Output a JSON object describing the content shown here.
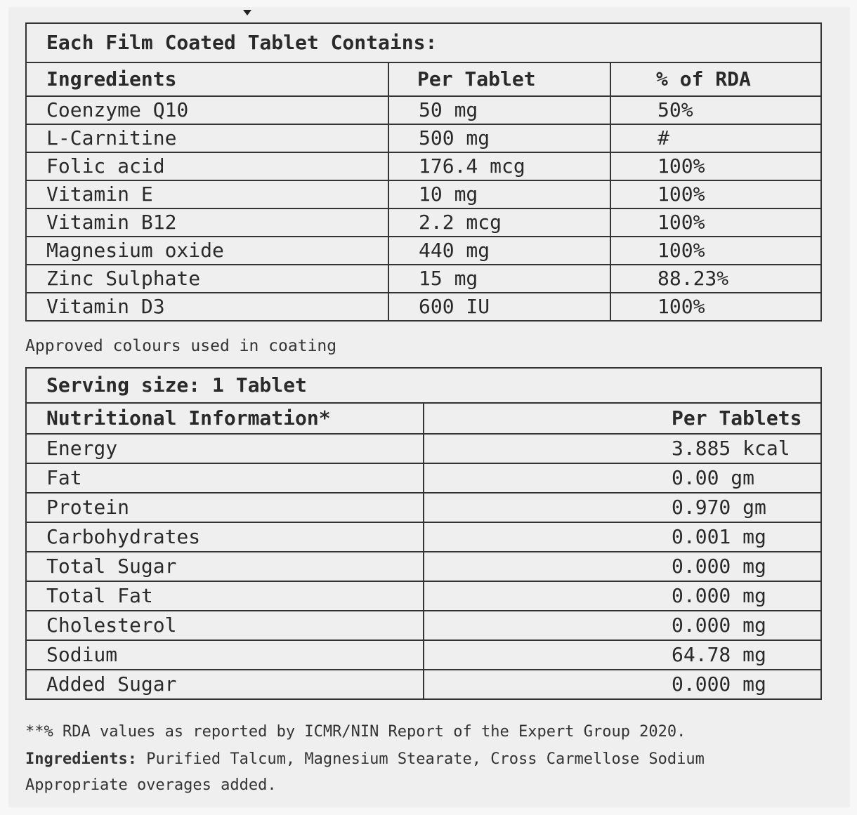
{
  "composition": {
    "title": "Each Film Coated Tablet Contains:",
    "headers": [
      "Ingredients",
      "Per Tablet",
      "% of RDA"
    ],
    "rows": [
      [
        "Coenzyme Q10",
        "50 mg",
        "50%"
      ],
      [
        "L-Carnitine",
        "500 mg",
        "#"
      ],
      [
        "Folic acid",
        "176.4 mcg",
        "100%"
      ],
      [
        "Vitamin E",
        "10 mg",
        "100%"
      ],
      [
        "Vitamin B12",
        "2.2 mcg",
        "100%"
      ],
      [
        "Magnesium oxide",
        "440 mg",
        "100%"
      ],
      [
        "Zinc Sulphate",
        "15 mg",
        "88.23%"
      ],
      [
        "Vitamin D3",
        "600 IU",
        "100%"
      ]
    ],
    "footnote": "Approved colours used in coating"
  },
  "nutrition": {
    "title": "Serving size: 1 Tablet",
    "headers": [
      "Nutritional Information*",
      "Per Tablets"
    ],
    "rows": [
      [
        "Energy",
        "3.885 kcal"
      ],
      [
        "Fat",
        "0.00 gm"
      ],
      [
        "Protein",
        "0.970 gm"
      ],
      [
        "Carbohydrates",
        "0.001 mg"
      ],
      [
        "Total Sugar",
        "0.000 mg"
      ],
      [
        "Total Fat",
        "0.000 mg"
      ],
      [
        "Cholesterol",
        "0.000 mg"
      ],
      [
        "Sodium",
        "64.78 mg"
      ],
      [
        "Added Sugar",
        "0.000 mg"
      ]
    ]
  },
  "footer": {
    "rda_note": "**% RDA values as reported by ICMR/NIN Report of the Expert Group 2020.",
    "ingredients_label": "Ingredients:",
    "ingredients_text": " Purified Talcum, Magnesium Stearate, Cross Carmellose Sodium",
    "overages": "Appropriate overages added."
  }
}
